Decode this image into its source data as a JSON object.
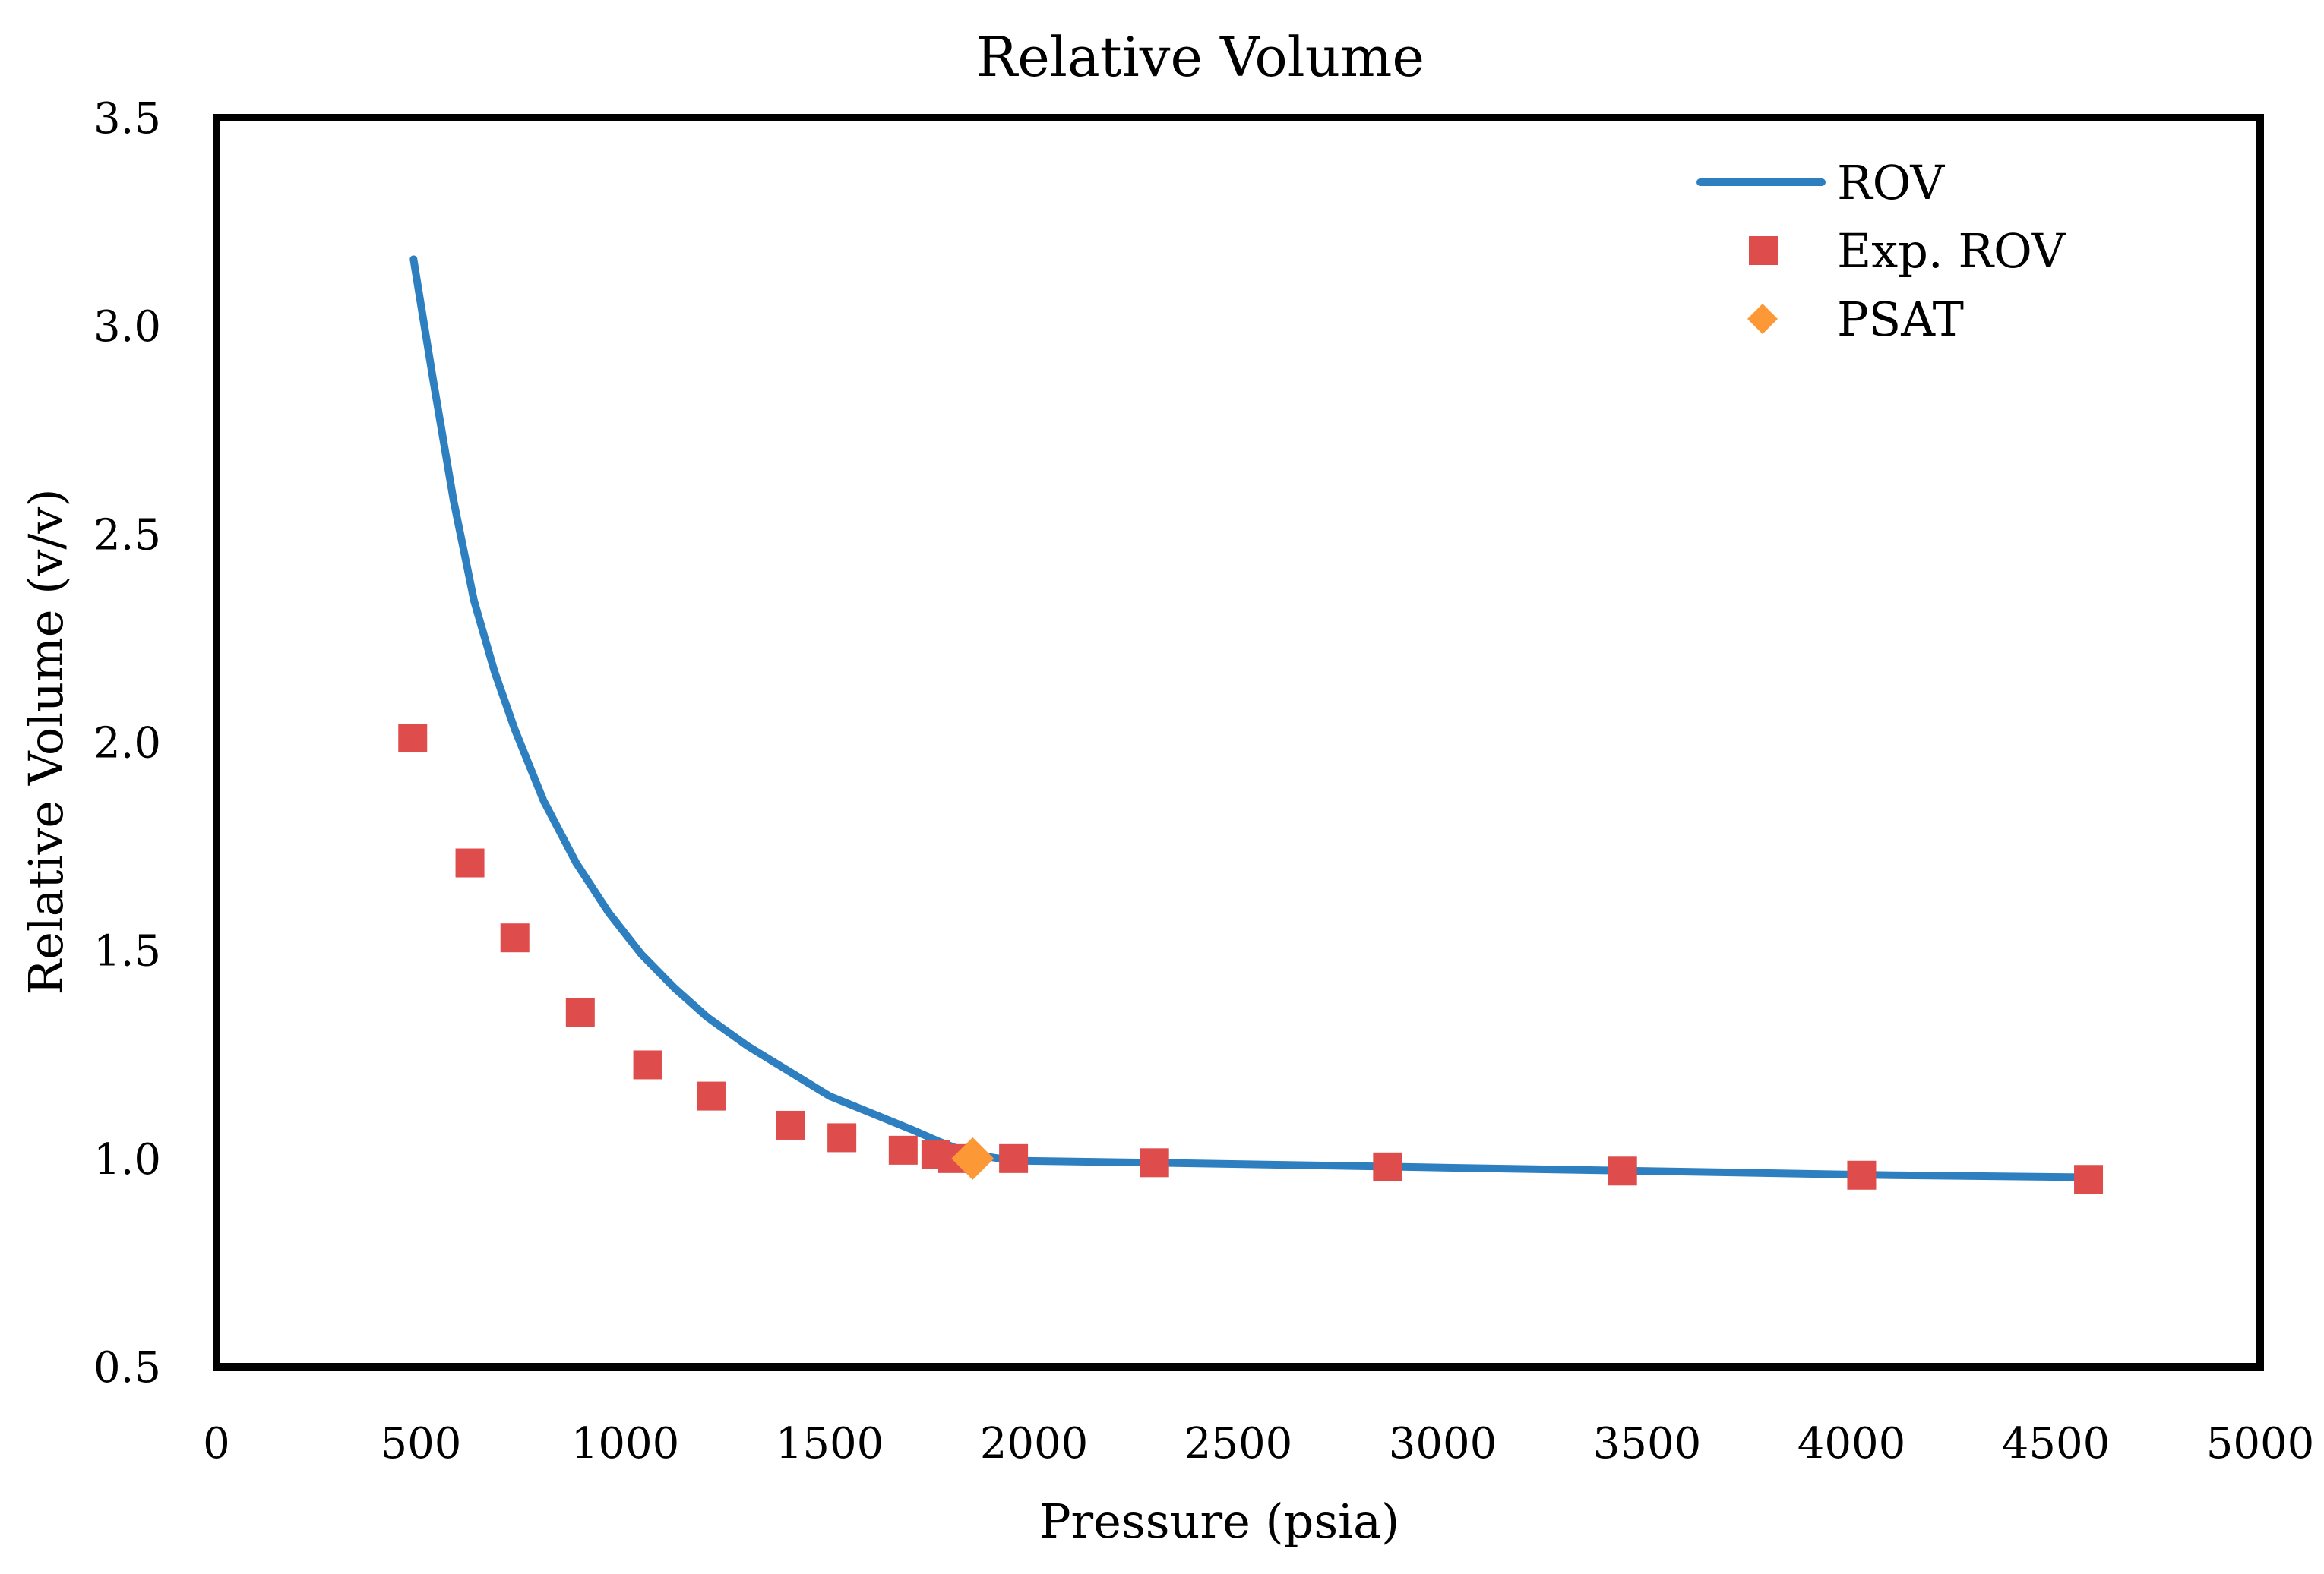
{
  "chart_data": {
    "type": "scatter",
    "title": "Relative Volume",
    "xlabel": "Pressure (psia)",
    "ylabel": "Relative Volume (v/v)",
    "xlim": [
      0,
      5000
    ],
    "ylim": [
      0.5,
      3.5
    ],
    "x_ticks": [
      0,
      500,
      1000,
      1500,
      2000,
      2500,
      3000,
      3500,
      4000,
      4500,
      5000
    ],
    "y_ticks": [
      0.5,
      1.0,
      1.5,
      2.0,
      2.5,
      3.0,
      3.5
    ],
    "x_tick_labels": [
      "0",
      "500",
      "1000",
      "1500",
      "2000",
      "2500",
      "3000",
      "3500",
      "4000",
      "4500",
      "5000"
    ],
    "y_tick_labels": [
      "0.5",
      "1.0",
      "1.5",
      "2.0",
      "2.5",
      "3.0",
      "3.5"
    ],
    "legend_position": "top-right",
    "series": [
      {
        "name": "ROV",
        "kind": "line",
        "color": "#2e7fc0",
        "x": [
          482,
          530,
          580,
          630,
          680,
          730,
          800,
          880,
          960,
          1040,
          1120,
          1200,
          1300,
          1400,
          1500,
          1600,
          1700,
          1770,
          1850,
          1950,
          2300,
          2900,
          3500,
          4100,
          4580
        ],
        "y": [
          3.16,
          2.87,
          2.58,
          2.34,
          2.17,
          2.03,
          1.86,
          1.71,
          1.59,
          1.49,
          1.41,
          1.34,
          1.27,
          1.21,
          1.15,
          1.11,
          1.07,
          1.04,
          1.01,
          0.995,
          0.99,
          0.98,
          0.97,
          0.96,
          0.955
        ]
      },
      {
        "name": "Exp. ROV",
        "kind": "marker-square",
        "color": "#de4d4b",
        "x": [
          480,
          620,
          730,
          890,
          1055,
          1210,
          1405,
          1530,
          1680,
          1760,
          1800,
          1950,
          2295,
          2865,
          3440,
          4025,
          4580
        ],
        "y": [
          2.01,
          1.71,
          1.53,
          1.35,
          1.225,
          1.15,
          1.08,
          1.05,
          1.02,
          1.01,
          1.0,
          1.0,
          0.99,
          0.98,
          0.97,
          0.96,
          0.95
        ]
      },
      {
        "name": "PSAT",
        "kind": "marker-diamond",
        "color": "#fd9836",
        "x": [
          1850
        ],
        "y": [
          1.0
        ]
      }
    ]
  }
}
